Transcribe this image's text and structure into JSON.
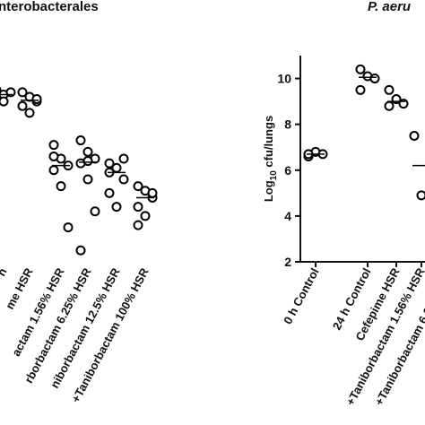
{
  "chart_data": [
    {
      "type": "scatter",
      "title": "nterobacterales",
      "categories": [
        "n",
        "me HSR",
        "actam 1.56% HSR",
        "rborbactam 6.25% HSR",
        "niborbactam 12.5% HSR",
        "+Taniborbactam 100% HSR"
      ],
      "series": [
        {
          "name": null,
          "color": "#000000",
          "values": [
            [
              9.5,
              9.3,
              9.4,
              9.1,
              9.0
            ],
            [
              9.4,
              9.2,
              9.0,
              8.8,
              8.5,
              9.1
            ],
            [
              7.1,
              6.5,
              6.2,
              6.0,
              5.3,
              3.5,
              6.6
            ],
            [
              7.3,
              6.8,
              6.5,
              6.3,
              5.6,
              4.2,
              2.5,
              6.4
            ],
            [
              6.3,
              6.1,
              5.6,
              5.0,
              4.4,
              6.5,
              5.9
            ],
            [
              5.3,
              5.1,
              4.8,
              4.4,
              4.0,
              5.0,
              3.6
            ]
          ]
        }
      ],
      "ylim": [
        2,
        11
      ]
    },
    {
      "type": "scatter",
      "title": "P. aeru",
      "categories": [
        "0 h Control",
        "24 h Control",
        "Cefepime HSR",
        "+Taniborbactam 1.56% HSR",
        "+Taniborbactam 6.25% HSR",
        "+Taniborbactam"
      ],
      "series": [
        {
          "name": null,
          "color": "#000000",
          "values": [
            [
              6.6,
              6.8,
              6.7,
              6.7
            ],
            [
              10.4,
              10.1,
              10.0,
              9.5
            ],
            [
              9.5,
              9.1,
              8.9,
              8.8
            ],
            [
              7.5,
              4.9
            ],
            null,
            null
          ]
        }
      ],
      "ylabel_parts": [
        "Log",
        "10",
        " cfu/lungs"
      ],
      "ylim": [
        2,
        11
      ],
      "yticks": [
        2,
        4,
        6,
        8,
        10
      ]
    }
  ]
}
